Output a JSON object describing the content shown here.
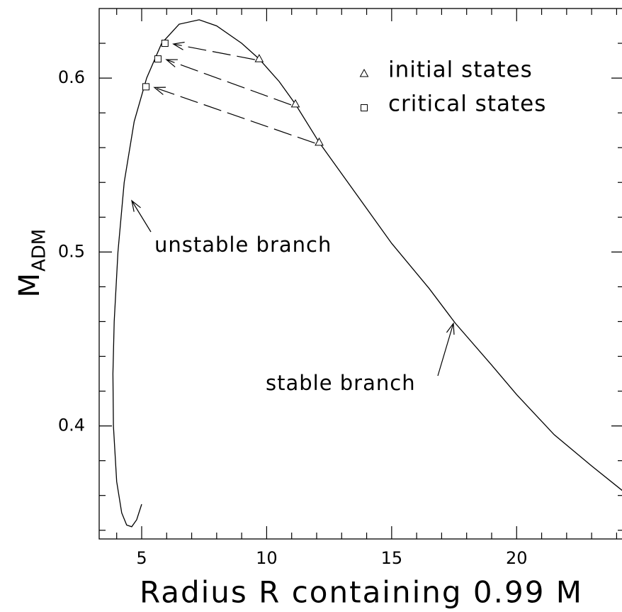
{
  "chart_data": {
    "type": "line",
    "x_label": "Radius R containing 0.99 M",
    "y_label": "M",
    "y_label_subscript": "ADM",
    "x": [
      5.0,
      4.8,
      4.6,
      4.4,
      4.2,
      4.0,
      3.87,
      3.85,
      3.9,
      4.05,
      4.3,
      4.7,
      5.2,
      5.8,
      6.5,
      7.3,
      8.0,
      9.0,
      9.7,
      10.5,
      11.15,
      12.1,
      13.5,
      15.0,
      16.5,
      17.55,
      19.0,
      20.0,
      21.5,
      23.0,
      24.3
    ],
    "values": [
      0.355,
      0.346,
      0.342,
      0.343,
      0.35,
      0.368,
      0.4,
      0.43,
      0.46,
      0.5,
      0.54,
      0.575,
      0.6,
      0.62,
      0.631,
      0.6335,
      0.63,
      0.62,
      0.611,
      0.598,
      0.585,
      0.563,
      0.535,
      0.505,
      0.479,
      0.459,
      0.435,
      0.418,
      0.395,
      0.377,
      0.362
    ],
    "color": "#000000",
    "markers": [
      {
        "name": "initial states",
        "marker": "triangle",
        "x": [
          9.7,
          11.15,
          12.1
        ],
        "values": [
          0.611,
          0.585,
          0.563
        ]
      },
      {
        "name": "critical states",
        "marker": "square",
        "x": [
          5.93,
          5.65,
          5.17
        ],
        "values": [
          0.62,
          0.611,
          0.595
        ]
      }
    ],
    "annotations": [
      "unstable branch",
      "stable branch"
    ],
    "xlim": [
      3.3,
      24.3
    ],
    "ylim": [
      0.335,
      0.64
    ],
    "xticks": [
      5,
      10,
      15,
      20
    ],
    "yticks": [
      0.4,
      0.5,
      0.6
    ],
    "xminorticks": [
      4,
      6,
      7,
      8,
      9,
      11,
      12,
      13,
      14,
      16,
      17,
      18,
      19,
      21,
      22,
      23,
      24
    ],
    "yminorticks": [
      0.34,
      0.36,
      0.38,
      0.42,
      0.44,
      0.46,
      0.48,
      0.52,
      0.54,
      0.56,
      0.58,
      0.62
    ],
    "legend": "upper right"
  }
}
